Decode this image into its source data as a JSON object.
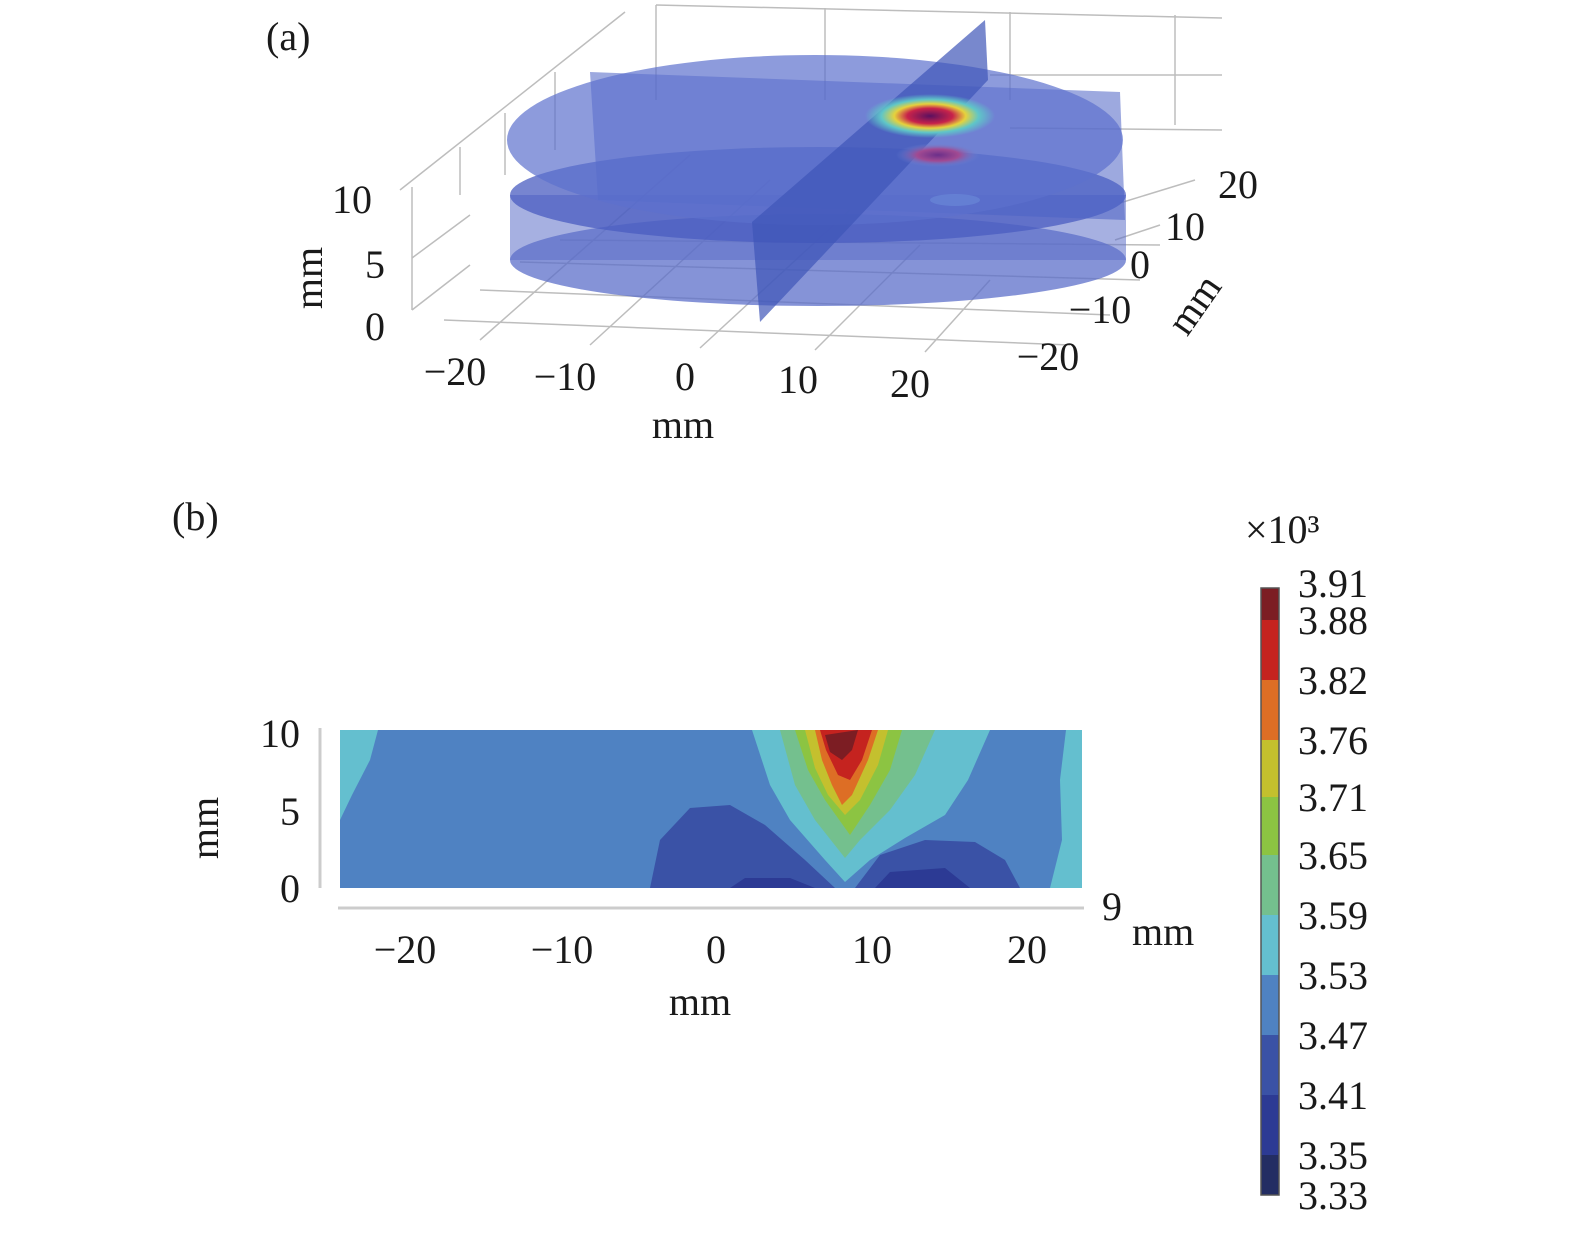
{
  "panels": {
    "a": {
      "label": "(a)",
      "x_axis": {
        "label": "mm",
        "ticks": [
          "−20",
          "−10",
          "0",
          "10",
          "20"
        ]
      },
      "y_axis": {
        "label": "mm",
        "ticks": [
          "−20",
          "−10",
          "0",
          "10",
          "20"
        ]
      },
      "z_axis": {
        "label": "mm",
        "ticks": [
          "0",
          "5",
          "10"
        ]
      }
    },
    "b": {
      "label": "(b)",
      "x_axis": {
        "label": "mm",
        "ticks": [
          "−20",
          "−10",
          "0",
          "10",
          "20"
        ]
      },
      "y_axis": {
        "label": "mm",
        "ticks": [
          "0",
          "5",
          "10"
        ]
      },
      "slice_value": "9",
      "slice_unit": "mm"
    }
  },
  "colorbar": {
    "multiplier": "×10³",
    "labels": [
      "3.91",
      "3.88",
      "3.82",
      "3.76",
      "3.71",
      "3.65",
      "3.59",
      "3.53",
      "3.47",
      "3.41",
      "3.35",
      "3.33"
    ],
    "colors": [
      "#7c1d23",
      "#c5231f",
      "#dd6e25",
      "#c4c02e",
      "#8cc442",
      "#74c08e",
      "#64bfcf",
      "#4f82c2",
      "#3a52a6",
      "#2c3a94",
      "#232d63"
    ]
  },
  "chart_data": [
    {
      "type": "heatmap",
      "panel": "a",
      "title": "",
      "xlabel": "mm",
      "ylabel": "mm",
      "zlabel": "mm",
      "xlim": [
        -20,
        20
      ],
      "ylim": [
        -20,
        20
      ],
      "zlim": [
        0,
        10
      ],
      "description_values": {
        "hotspot": {
          "x": 9,
          "y": 15,
          "z": 10
        },
        "slices": [
          "z=0",
          "z=5",
          "z=10",
          "x=9"
        ]
      }
    },
    {
      "type": "heatmap",
      "panel": "b",
      "title": "",
      "xlabel": "mm",
      "ylabel": "mm",
      "xlim": [
        -25,
        23
      ],
      "ylim": [
        0,
        10
      ],
      "levels": [
        3.33,
        3.35,
        3.41,
        3.47,
        3.53,
        3.59,
        3.65,
        3.71,
        3.76,
        3.82,
        3.88,
        3.91
      ],
      "level_unit_multiplier": 1000,
      "peak": {
        "x": 8,
        "y": 10,
        "value": 3.91
      }
    }
  ]
}
